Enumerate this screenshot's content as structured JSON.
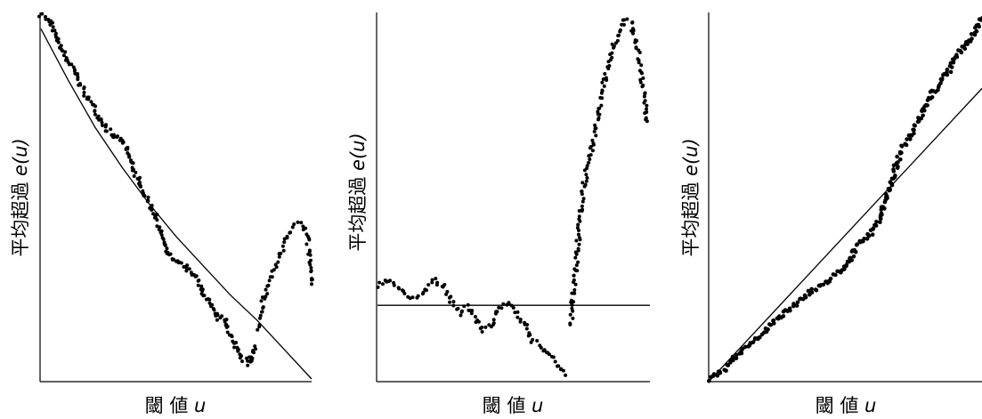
{
  "chart_data": [
    {
      "type": "scatter",
      "xlabel": "閾 値",
      "xvar": "u",
      "ylabel": "平均超過 ",
      "yvar": "e(u)",
      "xlim": [
        0,
        1
      ],
      "ylim": [
        0,
        1
      ],
      "reference_line": {
        "shape": "concave-decreasing",
        "x": [
          0.0,
          0.1,
          0.2,
          0.3,
          0.4,
          0.5,
          0.6,
          0.7,
          0.8,
          0.9,
          1.0
        ],
        "y": [
          0.96,
          0.82,
          0.69,
          0.58,
          0.48,
          0.39,
          0.31,
          0.23,
          0.16,
          0.08,
          0.0
        ]
      },
      "series": [
        {
          "anchors": [
            [
              0.0,
              1.0
            ],
            [
              0.02,
              0.99
            ],
            [
              0.04,
              0.97
            ],
            [
              0.06,
              0.93
            ],
            [
              0.09,
              0.88
            ],
            [
              0.12,
              0.85
            ],
            [
              0.15,
              0.8
            ],
            [
              0.18,
              0.76
            ],
            [
              0.2,
              0.74
            ],
            [
              0.24,
              0.69
            ],
            [
              0.26,
              0.67
            ],
            [
              0.29,
              0.66
            ],
            [
              0.31,
              0.64
            ],
            [
              0.33,
              0.6
            ],
            [
              0.35,
              0.56
            ],
            [
              0.38,
              0.51
            ],
            [
              0.41,
              0.47
            ],
            [
              0.44,
              0.41
            ],
            [
              0.47,
              0.34
            ],
            [
              0.5,
              0.32
            ],
            [
              0.53,
              0.31
            ],
            [
              0.57,
              0.28
            ],
            [
              0.61,
              0.22
            ],
            [
              0.65,
              0.17
            ],
            [
              0.68,
              0.16
            ],
            [
              0.7,
              0.12
            ],
            [
              0.74,
              0.06
            ],
            [
              0.77,
              0.04
            ],
            [
              0.79,
              0.09
            ]
          ]
        },
        {
          "anchors": [
            [
              0.8,
              0.14
            ],
            [
              0.82,
              0.21
            ],
            [
              0.84,
              0.26
            ],
            [
              0.86,
              0.3
            ],
            [
              0.88,
              0.33
            ],
            [
              0.9,
              0.37
            ],
            [
              0.92,
              0.4
            ],
            [
              0.94,
              0.42
            ],
            [
              0.96,
              0.43
            ],
            [
              0.98,
              0.4
            ],
            [
              0.99,
              0.35
            ],
            [
              1.0,
              0.26
            ]
          ]
        }
      ]
    },
    {
      "type": "scatter",
      "xlabel": "閾 値",
      "xvar": "u",
      "ylabel": "平均超過 ",
      "yvar": "e(u)",
      "xlim": [
        0,
        1
      ],
      "ylim": [
        0,
        1
      ],
      "reference_line": {
        "shape": "horizontal",
        "x": [
          0,
          1
        ],
        "y": [
          0.2,
          0.2
        ]
      },
      "series": [
        {
          "anchors": [
            [
              0.0,
              0.25
            ],
            [
              0.03,
              0.27
            ],
            [
              0.06,
              0.26
            ],
            [
              0.09,
              0.24
            ],
            [
              0.12,
              0.22
            ],
            [
              0.15,
              0.23
            ],
            [
              0.18,
              0.24
            ],
            [
              0.21,
              0.27
            ],
            [
              0.24,
              0.25
            ],
            [
              0.27,
              0.21
            ],
            [
              0.3,
              0.18
            ],
            [
              0.33,
              0.2
            ],
            [
              0.36,
              0.16
            ],
            [
              0.39,
              0.13
            ],
            [
              0.42,
              0.15
            ],
            [
              0.45,
              0.19
            ],
            [
              0.48,
              0.21
            ],
            [
              0.51,
              0.18
            ],
            [
              0.54,
              0.15
            ],
            [
              0.57,
              0.1
            ],
            [
              0.6,
              0.09
            ],
            [
              0.63,
              0.07
            ],
            [
              0.66,
              0.04
            ],
            [
              0.69,
              0.01
            ]
          ]
        },
        {
          "anchors": [
            [
              0.71,
              0.15
            ],
            [
              0.73,
              0.32
            ],
            [
              0.75,
              0.48
            ],
            [
              0.77,
              0.58
            ],
            [
              0.79,
              0.63
            ],
            [
              0.81,
              0.72
            ],
            [
              0.83,
              0.8
            ],
            [
              0.85,
              0.86
            ],
            [
              0.87,
              0.91
            ],
            [
              0.89,
              0.95
            ],
            [
              0.91,
              0.98
            ],
            [
              0.93,
              0.97
            ],
            [
              0.95,
              0.92
            ],
            [
              0.97,
              0.82
            ],
            [
              0.99,
              0.7
            ]
          ]
        }
      ]
    },
    {
      "type": "scatter",
      "xlabel": "閾 値",
      "xvar": "u",
      "ylabel": "平均超過 ",
      "yvar": "e(u)",
      "xlim": [
        0,
        1
      ],
      "ylim": [
        0,
        1
      ],
      "reference_line": {
        "shape": "linear-increasing",
        "x": [
          0,
          1
        ],
        "y": [
          0.0,
          0.79
        ]
      },
      "series": [
        {
          "anchors": [
            [
              0.0,
              0.0
            ],
            [
              0.05,
              0.03
            ],
            [
              0.1,
              0.07
            ],
            [
              0.15,
              0.1
            ],
            [
              0.2,
              0.13
            ],
            [
              0.25,
              0.17
            ],
            [
              0.3,
              0.2
            ],
            [
              0.35,
              0.23
            ],
            [
              0.4,
              0.25
            ],
            [
              0.45,
              0.28
            ],
            [
              0.5,
              0.31
            ],
            [
              0.53,
              0.35
            ],
            [
              0.55,
              0.37
            ],
            [
              0.58,
              0.39
            ],
            [
              0.6,
              0.41
            ],
            [
              0.62,
              0.43
            ],
            [
              0.64,
              0.47
            ],
            [
              0.66,
              0.52
            ],
            [
              0.68,
              0.57
            ],
            [
              0.7,
              0.62
            ],
            [
              0.72,
              0.64
            ],
            [
              0.74,
              0.66
            ],
            [
              0.76,
              0.69
            ],
            [
              0.78,
              0.72
            ],
            [
              0.8,
              0.75
            ],
            [
              0.82,
              0.78
            ],
            [
              0.84,
              0.8
            ],
            [
              0.86,
              0.82
            ],
            [
              0.88,
              0.84
            ],
            [
              0.9,
              0.87
            ],
            [
              0.92,
              0.89
            ],
            [
              0.94,
              0.91
            ],
            [
              0.96,
              0.93
            ],
            [
              0.98,
              0.95
            ],
            [
              1.0,
              0.98
            ]
          ]
        }
      ]
    }
  ]
}
